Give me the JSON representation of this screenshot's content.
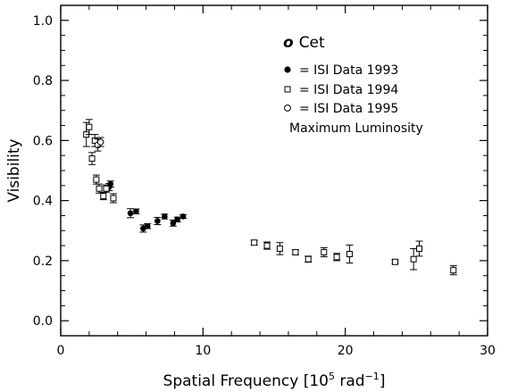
{
  "chart_data": {
    "type": "scatter",
    "title": "o Cet",
    "title_symbol": "o",
    "title_name": "Cet",
    "xlabel_main": "Spatial Frequency [10",
    "xlabel_sup1": "5",
    "xlabel_mid": " rad",
    "xlabel_sup2": "−1",
    "xlabel_end": "]",
    "ylabel": "Visibility",
    "xlim": [
      0,
      30
    ],
    "ylim": [
      -0.05,
      1.05
    ],
    "xticks": [
      0,
      10,
      20,
      30
    ],
    "xtick_labels": [
      "0",
      "10",
      "20",
      "30"
    ],
    "yticks": [
      0.0,
      0.2,
      0.4,
      0.6,
      0.8,
      1.0
    ],
    "ytick_labels": [
      "0.0",
      "0.2",
      "0.4",
      "0.6",
      "0.8",
      "1.0"
    ],
    "grid": false,
    "legend_position": "top-right",
    "note": "Maximum Luminosity",
    "series": [
      {
        "name": "= ISI Data 1993",
        "marker": "filled-circle",
        "points": [
          {
            "x": 3.4,
            "y": 0.445,
            "err": 0.012
          },
          {
            "x": 3.5,
            "y": 0.455,
            "err": 0.01
          },
          {
            "x": 4.9,
            "y": 0.358,
            "err": 0.015
          },
          {
            "x": 5.3,
            "y": 0.364,
            "err": 0.008
          },
          {
            "x": 5.8,
            "y": 0.307,
            "err": 0.012
          },
          {
            "x": 6.1,
            "y": 0.315,
            "err": 0.008
          },
          {
            "x": 6.8,
            "y": 0.332,
            "err": 0.012
          },
          {
            "x": 7.3,
            "y": 0.347,
            "err": 0.008
          },
          {
            "x": 7.9,
            "y": 0.325,
            "err": 0.01
          },
          {
            "x": 8.2,
            "y": 0.337,
            "err": 0.008
          },
          {
            "x": 8.6,
            "y": 0.347,
            "err": 0.006
          }
        ]
      },
      {
        "name": "= ISI Data 1994",
        "marker": "open-square",
        "points": [
          {
            "x": 1.8,
            "y": 0.62,
            "err": 0.04
          },
          {
            "x": 2.0,
            "y": 0.645,
            "err": 0.025
          },
          {
            "x": 2.2,
            "y": 0.54,
            "err": 0.02
          },
          {
            "x": 2.4,
            "y": 0.6,
            "err": 0.02
          },
          {
            "x": 2.5,
            "y": 0.47,
            "err": 0.015
          },
          {
            "x": 2.7,
            "y": 0.44,
            "err": 0.015
          },
          {
            "x": 3.0,
            "y": 0.415,
            "err": 0.012
          },
          {
            "x": 3.2,
            "y": 0.44,
            "err": 0.012
          },
          {
            "x": 3.7,
            "y": 0.408,
            "err": 0.015
          },
          {
            "x": 13.6,
            "y": 0.26,
            "err": 0.008
          },
          {
            "x": 14.5,
            "y": 0.25,
            "err": 0.012
          },
          {
            "x": 15.4,
            "y": 0.24,
            "err": 0.02
          },
          {
            "x": 16.5,
            "y": 0.228,
            "err": 0.008
          },
          {
            "x": 17.4,
            "y": 0.205,
            "err": 0.01
          },
          {
            "x": 18.5,
            "y": 0.228,
            "err": 0.015
          },
          {
            "x": 19.4,
            "y": 0.212,
            "err": 0.012
          },
          {
            "x": 20.3,
            "y": 0.222,
            "err": 0.03
          },
          {
            "x": 23.5,
            "y": 0.196,
            "err": 0.006
          },
          {
            "x": 24.8,
            "y": 0.205,
            "err": 0.035
          },
          {
            "x": 25.2,
            "y": 0.24,
            "err": 0.025
          },
          {
            "x": 27.6,
            "y": 0.168,
            "err": 0.015
          }
        ]
      },
      {
        "name": "= ISI Data 1995",
        "marker": "open-circle",
        "points": [
          {
            "x": 2.6,
            "y": 0.585,
            "err": 0.02
          },
          {
            "x": 2.8,
            "y": 0.595,
            "err": 0.015
          }
        ]
      }
    ]
  }
}
